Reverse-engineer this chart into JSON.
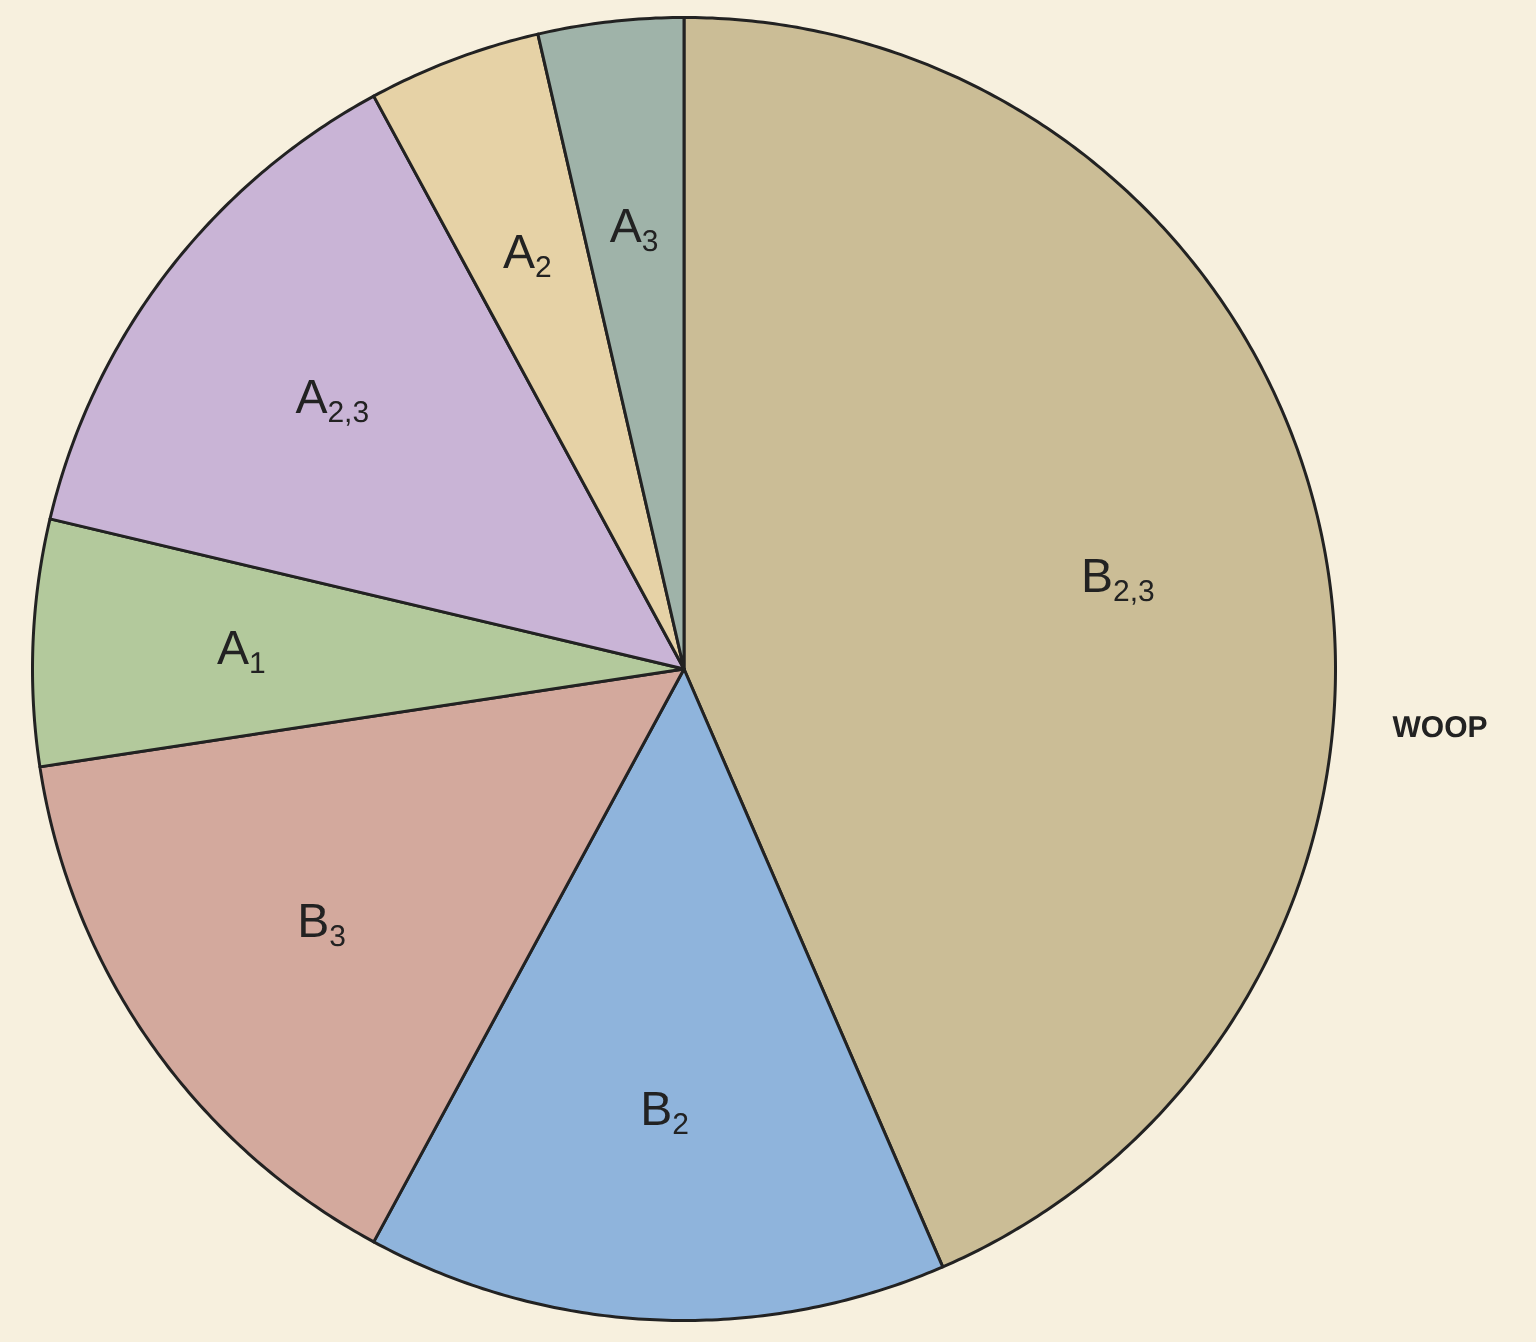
{
  "chart_data": {
    "type": "pie",
    "categories": [
      "B$_{2,3}$",
      "B$_{2}$",
      "B$_{3}$",
      "A$_{1}$",
      "A$_{2,3}$",
      "A$_{2}$",
      "A$_{3}$"
    ],
    "values": [
      43.5,
      14.4,
      14.7,
      6.1,
      13.4,
      4.3,
      3.6
    ],
    "colors": [
      "#cbbd96",
      "#8fb4dc",
      "#d3a99d",
      "#b3c99c",
      "#c9b4d6",
      "#e6d2a6",
      "#9fb3a9"
    ],
    "legend": false,
    "annotations": [
      "WOOP"
    ]
  }
}
